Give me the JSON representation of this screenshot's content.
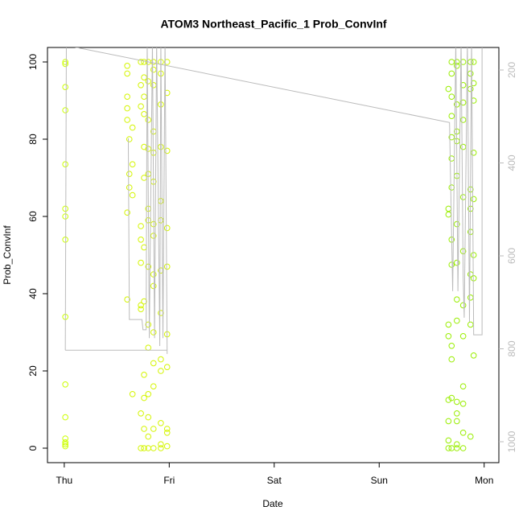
{
  "chart_data": {
    "type": "scatter",
    "title": "ATOM3 Northeast_Pacific_1 Prob_ConvInf",
    "xlabel": "Date",
    "ylabel": "Prob_ConvInf",
    "xlim": [
      -0.16,
      4.14
    ],
    "xticks": [
      {
        "value": 0,
        "label": "Thu"
      },
      {
        "value": 1,
        "label": "Fri"
      },
      {
        "value": 2,
        "label": "Sat"
      },
      {
        "value": 3,
        "label": "Sun"
      },
      {
        "value": 4,
        "label": "Mon"
      }
    ],
    "ylim": [
      -3.75,
      103.75
    ],
    "yticks": [
      0,
      20,
      40,
      60,
      80,
      100
    ],
    "y2lim": [
      1045,
      151.5
    ],
    "y2ticks": [
      200,
      400,
      600,
      800,
      1000
    ],
    "series": [
      {
        "color": "#ccff00",
        "x": [
          0.01,
          0.01,
          0.01,
          0.01,
          0.01,
          0.01,
          0.01,
          0.01,
          0.01,
          0.01,
          0.01,
          0.01,
          0.01,
          0.01,
          0.01
        ],
        "values": [
          100,
          99.5,
          93.5,
          87.5,
          73.5,
          62,
          60,
          54,
          34,
          16.5,
          8,
          2.5,
          1.5,
          1,
          0.5
        ]
      },
      {
        "color": "#d4f500",
        "x": [
          0.6,
          0.6,
          0.6,
          0.6,
          0.6,
          0.6,
          0.6,
          0.62,
          0.62,
          0.62,
          0.65,
          0.65,
          0.65,
          0.65,
          0.73,
          0.73,
          0.73,
          0.73,
          0.73,
          0.73,
          0.73,
          0.73,
          0.73,
          0.73,
          0.76,
          0.76,
          0.76,
          0.76,
          0.76,
          0.76,
          0.76,
          0.76,
          0.76,
          0.76,
          0.76,
          0.76,
          0.8,
          0.8,
          0.8,
          0.8,
          0.8,
          0.8,
          0.8,
          0.8,
          0.8,
          0.8,
          0.8,
          0.8,
          0.8,
          0.8,
          0.85,
          0.85,
          0.85,
          0.85,
          0.85,
          0.85,
          0.85,
          0.85,
          0.85,
          0.85,
          0.85,
          0.85,
          0.85,
          0.85,
          0.85,
          0.92,
          0.92,
          0.92,
          0.92,
          0.92,
          0.92,
          0.92,
          0.92,
          0.92,
          0.92,
          0.92,
          0.92,
          0.92,
          0.98,
          0.98,
          0.98,
          0.98,
          0.98,
          0.98,
          0.98,
          0.98,
          0.98,
          0.98
        ],
        "values": [
          99,
          97,
          91,
          88,
          85,
          61,
          38.5,
          80,
          71,
          67.5,
          83,
          73.5,
          65.5,
          14,
          100,
          94,
          88.5,
          57.5,
          54,
          48,
          37,
          36,
          9,
          0,
          100,
          96,
          91,
          86.5,
          78,
          70,
          52,
          38,
          19,
          13,
          5,
          0,
          100,
          95,
          85,
          77.5,
          71,
          62,
          59,
          47,
          32,
          26,
          14,
          8,
          3,
          0,
          100,
          98,
          94,
          82,
          76.5,
          69,
          58,
          55,
          45,
          42,
          30,
          22,
          16,
          5,
          0,
          100,
          97,
          89,
          78,
          64,
          59,
          46,
          35,
          23,
          20,
          6.5,
          1,
          0,
          100,
          92,
          77,
          57,
          47,
          29.5,
          21,
          5,
          4,
          0.5
        ]
      },
      {
        "color": "#99ee00",
        "x": [
          3.66,
          3.66,
          3.66,
          3.66,
          3.66,
          3.66,
          3.66,
          3.66,
          3.66,
          3.69,
          3.69,
          3.69,
          3.69,
          3.69,
          3.69,
          3.69,
          3.69,
          3.69,
          3.69,
          3.69,
          3.69,
          3.69,
          3.74,
          3.74,
          3.74,
          3.74,
          3.74,
          3.74,
          3.74,
          3.74,
          3.74,
          3.74,
          3.74,
          3.74,
          3.74,
          3.74,
          3.74,
          3.8,
          3.8,
          3.8,
          3.8,
          3.8,
          3.8,
          3.8,
          3.8,
          3.8,
          3.8,
          3.8,
          3.8,
          3.8,
          3.87,
          3.87,
          3.87,
          3.87,
          3.87,
          3.87,
          3.87,
          3.87,
          3.87,
          3.87,
          3.9,
          3.9,
          3.9,
          3.9,
          3.9,
          3.9,
          3.9,
          3.9
        ],
        "values": [
          93,
          62,
          60.5,
          32,
          29,
          12.5,
          7,
          2,
          0,
          100,
          97,
          91,
          86,
          80.5,
          75,
          67.5,
          54,
          47.5,
          26.5,
          23,
          13,
          0,
          100,
          99,
          89,
          82,
          79.5,
          70.5,
          58,
          48,
          38.5,
          33,
          12,
          9,
          7,
          1,
          0,
          100,
          94,
          89.5,
          85,
          78,
          65,
          51,
          37,
          29,
          16,
          11.5,
          4,
          0,
          100,
          97,
          93,
          67,
          62,
          56,
          45,
          39,
          32,
          3,
          100,
          94.5,
          90,
          76.5,
          64.5,
          50,
          44,
          24
        ]
      },
      {
        "type": "line",
        "axis": "y2",
        "color": "#bbbbbb",
        "x": [
          0.01,
          0.02,
          null,
          0.01,
          0.98,
          null,
          0.61,
          0.62,
          0.74,
          0.75,
          0.78,
          0.79,
          0.81,
          0.84,
          0.86,
          0.88,
          0.91,
          0.92,
          0.94,
          0.96,
          0.98,
          null,
          0.04,
          3.67,
          3.7,
          3.73,
          3.75,
          3.78,
          3.8,
          3.81,
          3.84,
          3.86,
          3.88,
          3.9,
          3.98,
          3.98
        ],
        "values": [
          803,
          140,
          null,
          803,
          803,
          null,
          347,
          737,
          737,
          759,
          759,
          140,
          777,
          140,
          777,
          140,
          794,
          140,
          777,
          140,
          811,
          null,
          148,
          313,
          676,
          140,
          676,
          140,
          647,
          733,
          140,
          742,
          140,
          770,
          770,
          140
        ]
      }
    ]
  }
}
